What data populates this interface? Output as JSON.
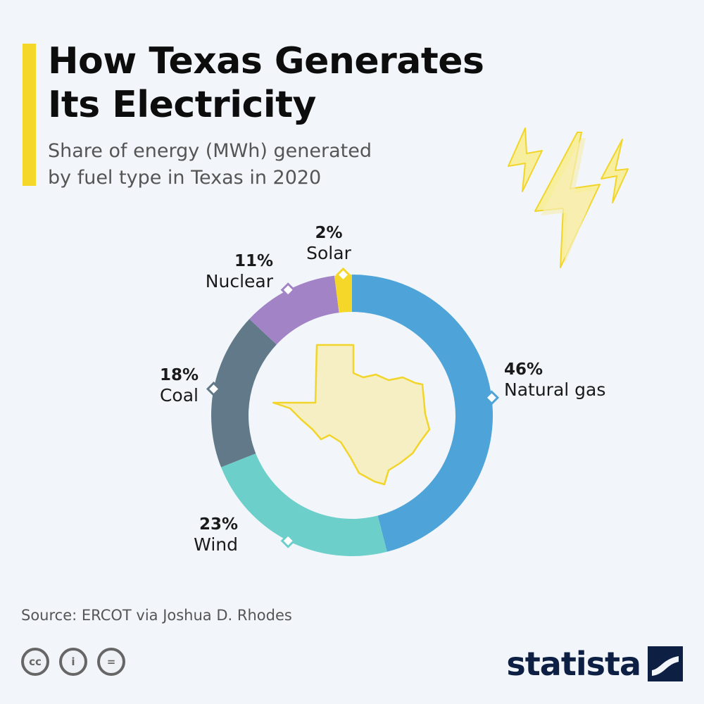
{
  "header": {
    "title_line1": "How Texas Generates",
    "title_line2": "Its Electricity",
    "subtitle_line1": "Share of energy (MWh) generated",
    "subtitle_line2": "by fuel type in Texas in 2020"
  },
  "chart_data": {
    "type": "pie",
    "donut": true,
    "title": "How Texas Generates Its Electricity",
    "subtitle": "Share of energy (MWh) generated by fuel type in Texas in 2020",
    "unit": "%",
    "slices": [
      {
        "name": "Natural gas",
        "value": 46,
        "label": "46%",
        "color": "#4ea3d8"
      },
      {
        "name": "Wind",
        "value": 23,
        "label": "23%",
        "color": "#6ccfca"
      },
      {
        "name": "Coal",
        "value": 18,
        "label": "18%",
        "color": "#617988"
      },
      {
        "name": "Nuclear",
        "value": 11,
        "label": "11%",
        "color": "#a283c6"
      },
      {
        "name": "Solar",
        "value": 2,
        "label": "2%",
        "color": "#f5d72a"
      }
    ],
    "center_icon": "texas-map-icon",
    "legend": "none"
  },
  "decoration": {
    "icons": [
      "lightning-bolt-icon"
    ]
  },
  "footer": {
    "source": "Source: ERCOT via Joshua D. Rhodes",
    "license_icons": [
      "cc-icon",
      "by-icon",
      "nd-icon"
    ],
    "license_glyphs": [
      "cc",
      "i",
      "="
    ],
    "brand": "statista",
    "brand_color": "#0e1f44"
  }
}
